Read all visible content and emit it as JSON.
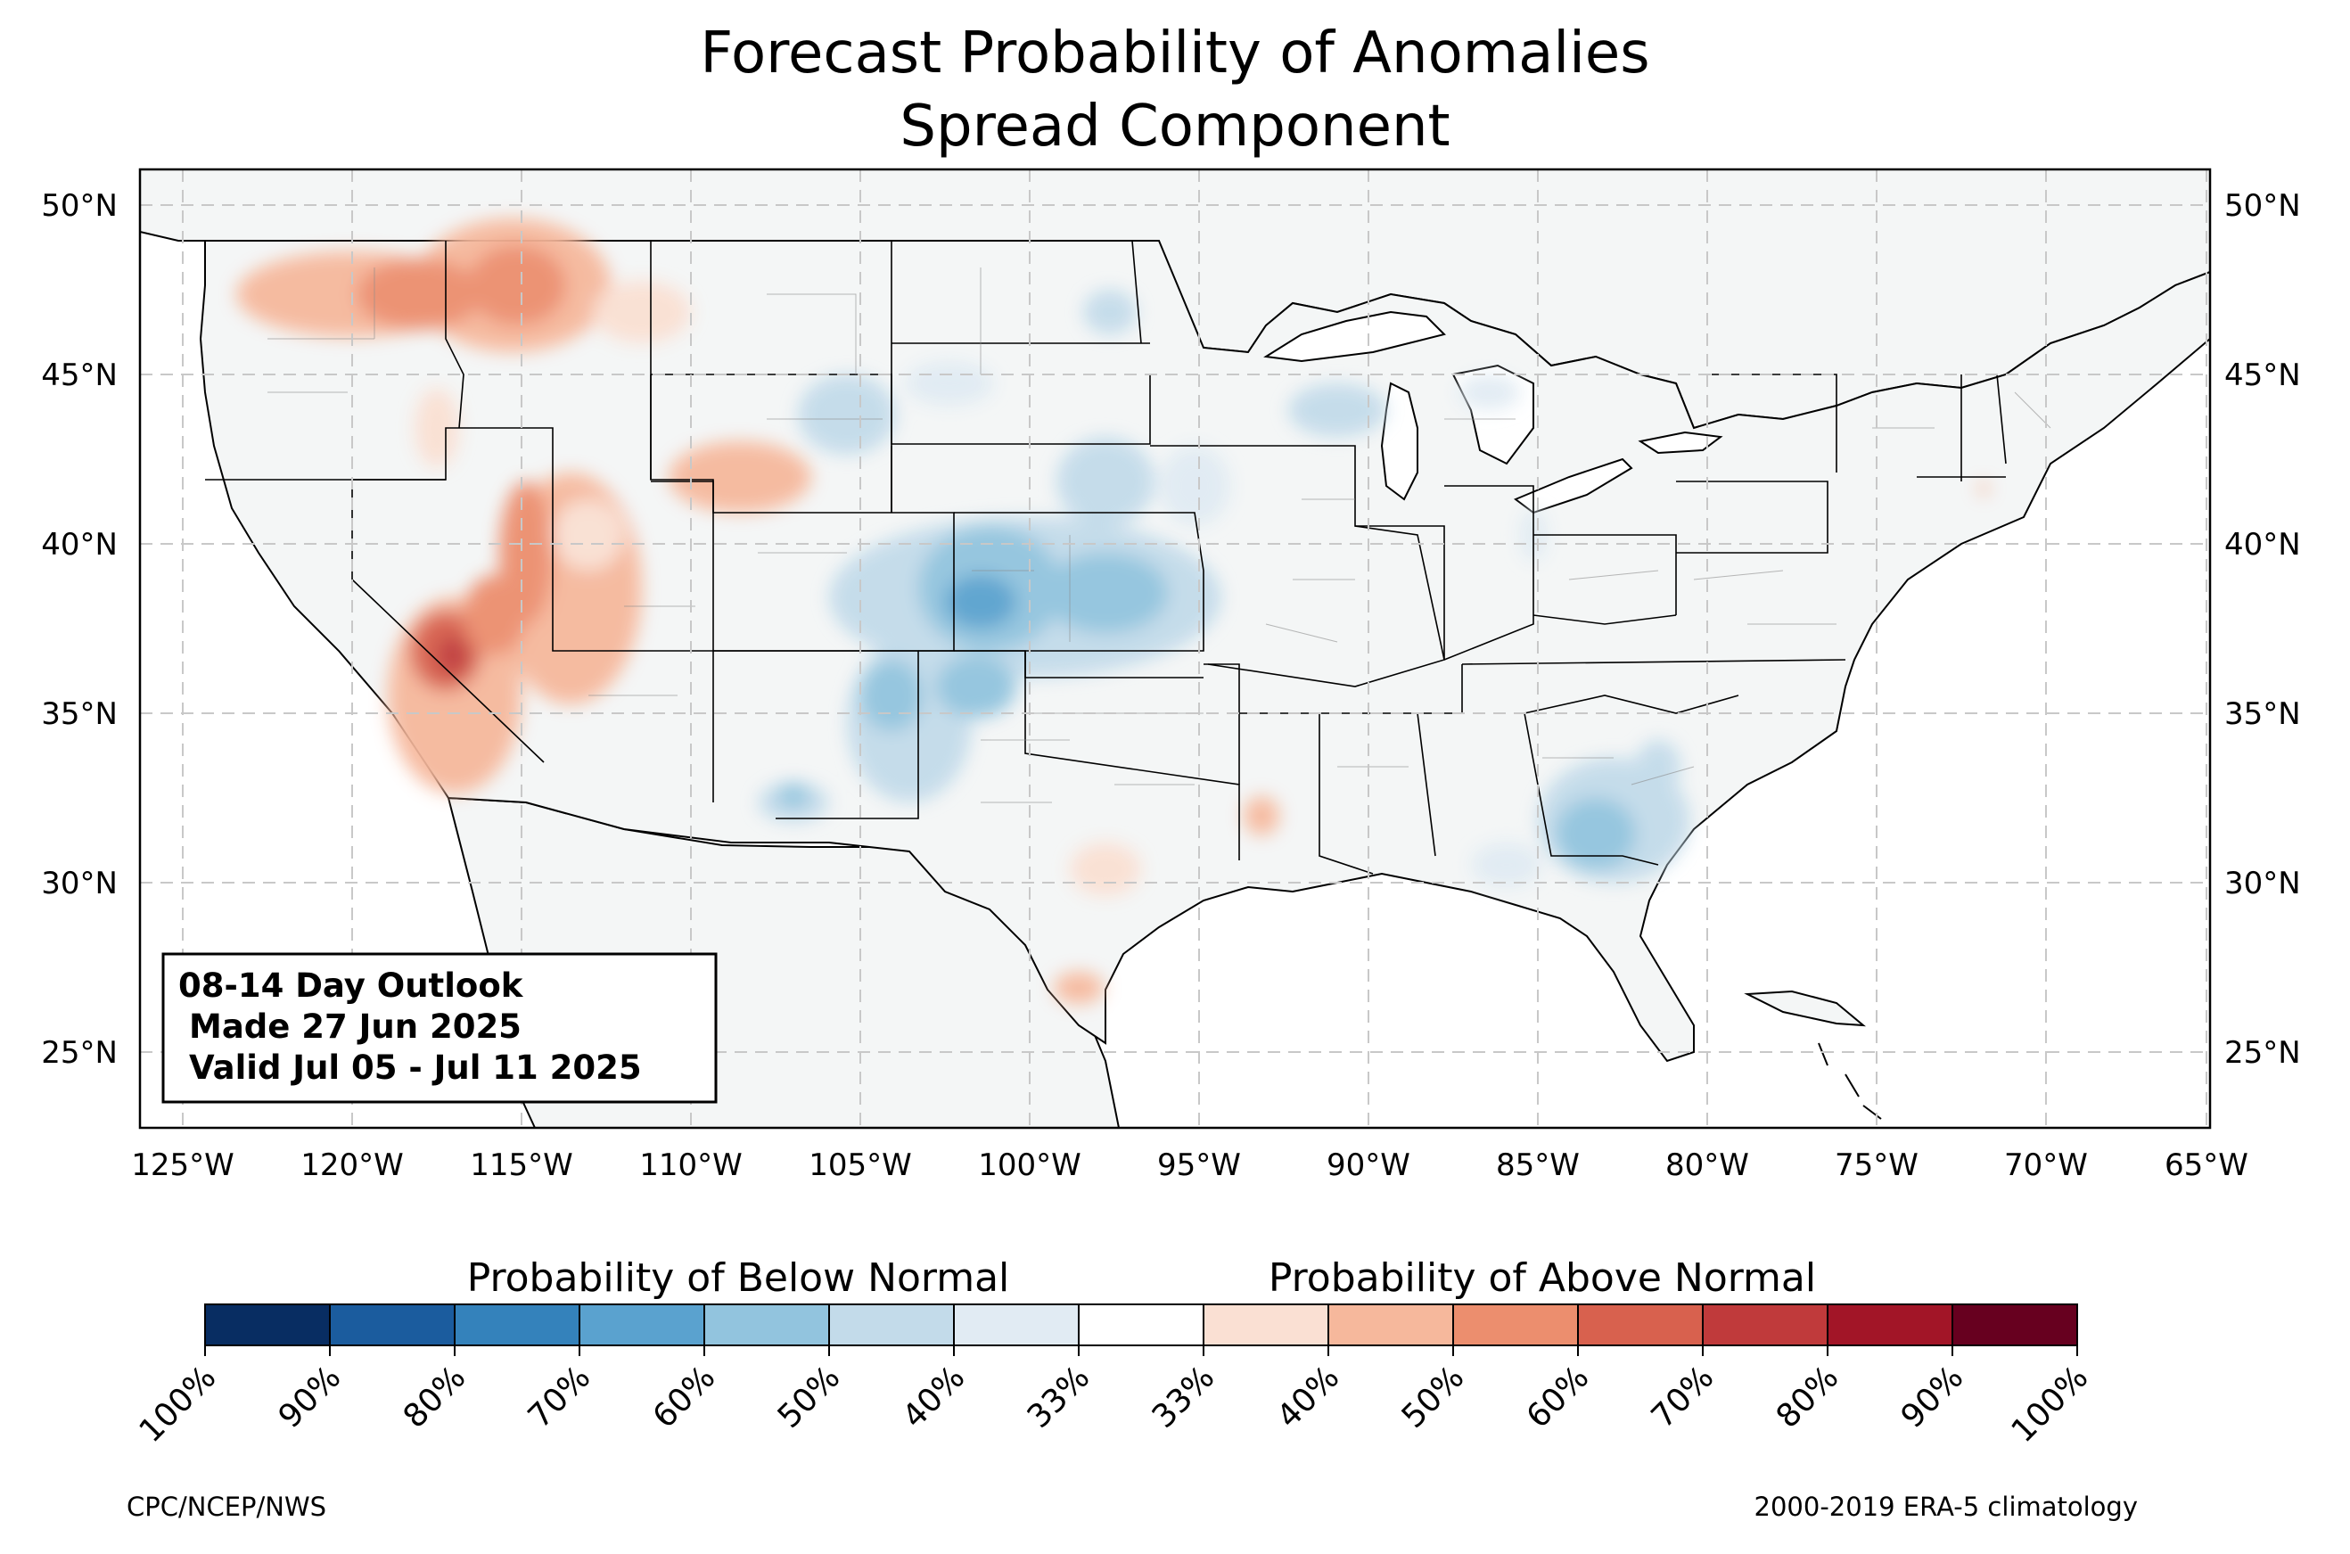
{
  "title": {
    "line1": "Forecast Probability of Anomalies",
    "line2": "Spread Component"
  },
  "map": {
    "lat_ticks": [
      "50°N",
      "45°N",
      "40°N",
      "35°N",
      "30°N",
      "25°N"
    ],
    "lon_ticks": [
      "125°W",
      "120°W",
      "115°W",
      "110°W",
      "105°W",
      "100°W",
      "95°W",
      "90°W",
      "85°W",
      "80°W",
      "75°W",
      "70°W",
      "65°W"
    ],
    "land_color": "#f4f6f6",
    "grid": true,
    "info_box": {
      "line1": "08-14 Day Outlook",
      "line2": "Made 27 Jun 2025",
      "line3": "Valid Jul 05 - Jul 11 2025"
    }
  },
  "colorbar": {
    "below_label": "Probability of Below Normal",
    "above_label": "Probability of Above Normal",
    "tick_labels": [
      "100%",
      "90%",
      "80%",
      "70%",
      "60%",
      "50%",
      "40%",
      "33%",
      "33%",
      "40%",
      "50%",
      "60%",
      "70%",
      "80%",
      "90%",
      "100%"
    ],
    "colors": [
      "#082d62",
      "#1b5c9e",
      "#3482bb",
      "#5aa2cf",
      "#92c4de",
      "#c3dbea",
      "#e1ebf3",
      "#ffffff",
      "#fae0d3",
      "#f6b89c",
      "#ec8e6e",
      "#d8614e",
      "#c03a3b",
      "#a21527",
      "#67001f"
    ]
  },
  "footer": {
    "left": "CPC/NCEP/NWS",
    "right": "2000-2019 ERA-5 climatology"
  }
}
